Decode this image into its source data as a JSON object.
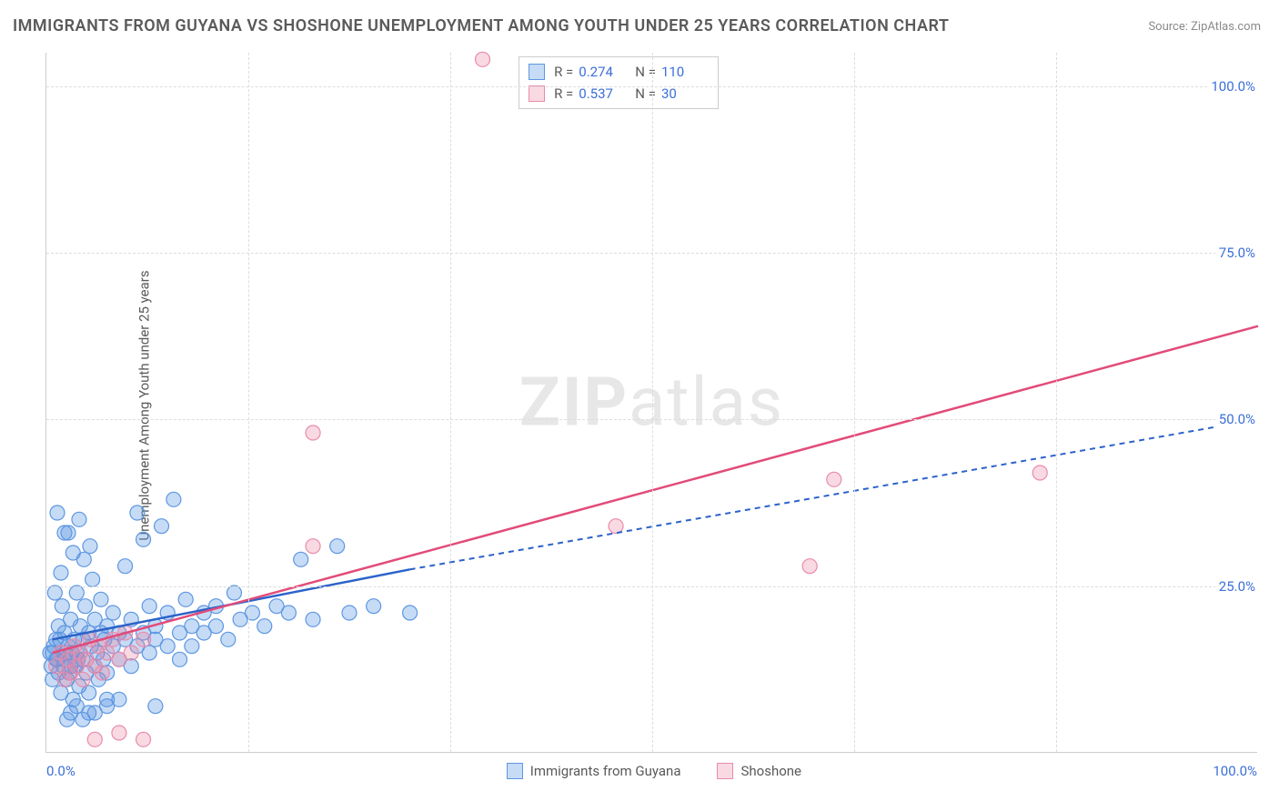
{
  "title": "IMMIGRANTS FROM GUYANA VS SHOSHONE UNEMPLOYMENT AMONG YOUTH UNDER 25 YEARS CORRELATION CHART",
  "source_label": "Source:",
  "source_name": "ZipAtlas.com",
  "y_axis_label": "Unemployment Among Youth under 25 years",
  "watermark_a": "ZIP",
  "watermark_b": "atlas",
  "chart": {
    "type": "scatter",
    "xlim": [
      0,
      100
    ],
    "ylim": [
      0,
      105
    ],
    "y_ticks": [
      25.0,
      50.0,
      75.0,
      100.0
    ],
    "y_tick_labels": [
      "25.0%",
      "50.0%",
      "75.0%",
      "100.0%"
    ],
    "x_valuelines": [
      16.7,
      33.3,
      50.0,
      66.7,
      83.3
    ],
    "x_tick_left": "0.0%",
    "x_tick_right": "100.0%",
    "grid_color": "#dddddd",
    "axis_color": "#cccccc",
    "background_color": "#ffffff",
    "marker_radius": 8,
    "marker_stroke_width": 1.2,
    "line_width": 2.5,
    "dash_pattern": "6,5",
    "series": [
      {
        "name": "Immigrants from Guyana",
        "color_fill": "rgba(93,151,226,0.35)",
        "color_stroke": "#5d97e2",
        "line_color": "#2b63c9",
        "R": "0.274",
        "N": "110",
        "trend_solid": {
          "x1": 0.5,
          "y1": 17,
          "x2": 30,
          "y2": 27.5
        },
        "trend_dash": {
          "x1": 30,
          "y1": 27.5,
          "x2": 100,
          "y2": 50
        },
        "points": [
          [
            0.5,
            15
          ],
          [
            0.8,
            17
          ],
          [
            1,
            12
          ],
          [
            1,
            19
          ],
          [
            1.2,
            9
          ],
          [
            1.3,
            22
          ],
          [
            1.5,
            14
          ],
          [
            1.5,
            18
          ],
          [
            1.7,
            11
          ],
          [
            1.8,
            16
          ],
          [
            2,
            13
          ],
          [
            2,
            20
          ],
          [
            2.2,
            8
          ],
          [
            2.3,
            17
          ],
          [
            2.5,
            15
          ],
          [
            2.5,
            24
          ],
          [
            2.7,
            10
          ],
          [
            2.8,
            19
          ],
          [
            3,
            14
          ],
          [
            3,
            17
          ],
          [
            3.2,
            22
          ],
          [
            3.3,
            12
          ],
          [
            3.5,
            18
          ],
          [
            3.5,
            9
          ],
          [
            3.7,
            16
          ],
          [
            3.8,
            26
          ],
          [
            4,
            13
          ],
          [
            4,
            20
          ],
          [
            4.2,
            15
          ],
          [
            4.3,
            11
          ],
          [
            4.5,
            18
          ],
          [
            4.5,
            23
          ],
          [
            4.7,
            14
          ],
          [
            4.8,
            17
          ],
          [
            5,
            19
          ],
          [
            5,
            12
          ],
          [
            5.5,
            16
          ],
          [
            5.5,
            21
          ],
          [
            6,
            18
          ],
          [
            6,
            14
          ],
          [
            6.5,
            28
          ],
          [
            6.5,
            17
          ],
          [
            7,
            20
          ],
          [
            7,
            13
          ],
          [
            7.5,
            16
          ],
          [
            7.5,
            36
          ],
          [
            8,
            18
          ],
          [
            8,
            32
          ],
          [
            8.5,
            15
          ],
          [
            8.5,
            22
          ],
          [
            9,
            19
          ],
          [
            9,
            17
          ],
          [
            9.5,
            34
          ],
          [
            10,
            16
          ],
          [
            10,
            21
          ],
          [
            10.5,
            38
          ],
          [
            11,
            18
          ],
          [
            11,
            14
          ],
          [
            11.5,
            23
          ],
          [
            12,
            19
          ],
          [
            12,
            16
          ],
          [
            13,
            21
          ],
          [
            13,
            18
          ],
          [
            14,
            22
          ],
          [
            14,
            19
          ],
          [
            15,
            17
          ],
          [
            15.5,
            24
          ],
          [
            16,
            20
          ],
          [
            17,
            21
          ],
          [
            18,
            19
          ],
          [
            19,
            22
          ],
          [
            20,
            21
          ],
          [
            21,
            29
          ],
          [
            22,
            20
          ],
          [
            24,
            31
          ],
          [
            25,
            21
          ],
          [
            27,
            22
          ],
          [
            30,
            21
          ],
          [
            9,
            7
          ],
          [
            3,
            5
          ],
          [
            4,
            6
          ],
          [
            5,
            7
          ],
          [
            6,
            8
          ],
          [
            2,
            6
          ],
          [
            2.5,
            7
          ],
          [
            3.5,
            6
          ],
          [
            1.7,
            5
          ],
          [
            0.9,
            14
          ],
          [
            0.6,
            16
          ],
          [
            0.4,
            13
          ],
          [
            0.3,
            15
          ],
          [
            0.5,
            11
          ],
          [
            0.8,
            14
          ],
          [
            1.1,
            17
          ],
          [
            1.4,
            13
          ],
          [
            1.6,
            15
          ],
          [
            1.9,
            12
          ],
          [
            2.1,
            15
          ],
          [
            2.4,
            13
          ],
          [
            2.6,
            14
          ],
          [
            0.7,
            24
          ],
          [
            1.2,
            27
          ],
          [
            1.8,
            33
          ],
          [
            2.2,
            30
          ],
          [
            2.7,
            35
          ],
          [
            3.1,
            29
          ],
          [
            3.6,
            31
          ],
          [
            0.9,
            36
          ],
          [
            1.5,
            33
          ],
          [
            5,
            8
          ]
        ]
      },
      {
        "name": "Shoshone",
        "color_fill": "rgba(235,128,160,0.30)",
        "color_stroke": "#e98bab",
        "line_color": "#e24b79",
        "R": "0.537",
        "N": "30",
        "trend_solid": {
          "x1": 0.5,
          "y1": 15,
          "x2": 100,
          "y2": 64
        },
        "trend_dash": null,
        "points": [
          [
            0.8,
            13
          ],
          [
            1.2,
            15
          ],
          [
            1.5,
            11
          ],
          [
            1.8,
            14
          ],
          [
            2,
            12
          ],
          [
            2.3,
            16
          ],
          [
            2.5,
            13
          ],
          [
            2.8,
            15
          ],
          [
            3,
            11
          ],
          [
            3.3,
            14
          ],
          [
            3.6,
            17
          ],
          [
            4,
            13
          ],
          [
            4.3,
            16
          ],
          [
            4.6,
            12
          ],
          [
            5,
            15
          ],
          [
            5.5,
            17
          ],
          [
            6,
            14
          ],
          [
            6.5,
            18
          ],
          [
            7,
            15
          ],
          [
            8,
            17
          ],
          [
            22,
            48
          ],
          [
            22,
            31
          ],
          [
            47,
            34
          ],
          [
            63,
            28
          ],
          [
            65,
            41
          ],
          [
            82,
            42
          ],
          [
            4,
            2
          ],
          [
            6,
            3
          ],
          [
            8,
            2
          ],
          [
            36,
            104
          ]
        ]
      }
    ]
  },
  "stats_box_labels": {
    "R": "R =",
    "N": "N ="
  },
  "legend_bottom": [
    "Immigrants from Guyana",
    "Shoshone"
  ],
  "colors": {
    "text_primary": "#5a5a5a",
    "text_value": "#3b6fd8",
    "text_muted": "#8a8a8a"
  },
  "typography": {
    "title_fontsize": 18,
    "label_fontsize": 15,
    "tick_fontsize": 15,
    "watermark_fontsize": 74
  }
}
